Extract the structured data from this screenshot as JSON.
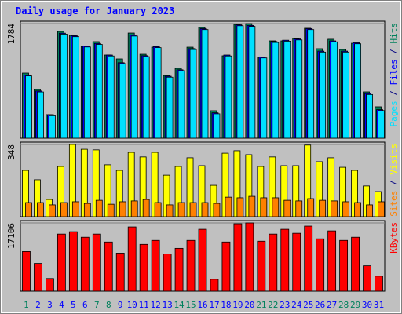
{
  "title": "Daily usage for January 2023",
  "legend_separator": " / ",
  "chart_data": [
    {
      "type": "bar",
      "series": [
        {
          "name": "Hits",
          "color": "#00805c",
          "values": [
            1014,
            758,
            367,
            1662,
            1601,
            1430,
            1503,
            1295,
            1234,
            1637,
            1307,
            1417,
            977,
            1087,
            1417,
            1723,
            428,
            1283,
            1772,
            1784,
            1259,
            1515,
            1515,
            1552,
            1711,
            1393,
            1540,
            1381,
            1478,
            721,
            489
          ]
        },
        {
          "name": "Files",
          "color": "#0000ff",
          "values": [
            985,
            735,
            365,
            1635,
            1595,
            1435,
            1475,
            1295,
            1175,
            1605,
            1285,
            1425,
            965,
            1065,
            1395,
            1705,
            395,
            1295,
            1765,
            1755,
            1265,
            1505,
            1525,
            1545,
            1705,
            1355,
            1515,
            1355,
            1485,
            695,
            445
          ]
        },
        {
          "name": "Pages",
          "color": "#00e0ff",
          "values": [
            970,
            720,
            350,
            1620,
            1580,
            1420,
            1460,
            1280,
            1160,
            1590,
            1270,
            1410,
            950,
            1050,
            1380,
            1690,
            380,
            1280,
            1750,
            1740,
            1250,
            1490,
            1510,
            1530,
            1690,
            1340,
            1500,
            1340,
            1470,
            680,
            430
          ]
        }
      ],
      "ylim": [
        0,
        1784
      ],
      "yticks": [
        1784
      ]
    },
    {
      "type": "bar",
      "series": [
        {
          "name": "Visits",
          "color": "#ffff00",
          "values": [
            223,
            178,
            83,
            242,
            348,
            325,
            322,
            250,
            223,
            310,
            288,
            310,
            200,
            242,
            284,
            246,
            151,
            306,
            318,
            299,
            242,
            288,
            246,
            246,
            345,
            265,
            284,
            238,
            223,
            148,
            121
          ]
        },
        {
          "name": "Sites",
          "color": "#ff8000",
          "values": [
            68,
            68,
            57,
            68,
            72,
            64,
            79,
            60,
            72,
            76,
            83,
            68,
            57,
            68,
            68,
            68,
            64,
            94,
            91,
            98,
            91,
            91,
            79,
            76,
            87,
            79,
            76,
            72,
            68,
            57,
            72
          ]
        }
      ],
      "ylim": [
        0,
        348
      ],
      "yticks": [
        348
      ]
    },
    {
      "type": "bar",
      "series": [
        {
          "name": "KBytes",
          "color": "#ff0000",
          "values": [
            9946,
            6962,
            3183,
            14322,
            14918,
            13525,
            14322,
            12333,
            9548,
            16111,
            11736,
            12730,
            9349,
            10741,
            12730,
            15515,
            2984,
            12333,
            16907,
            17106,
            12531,
            14322,
            15515,
            14521,
            16311,
            13128,
            15117,
            12730,
            13525,
            6365,
            3779
          ]
        }
      ],
      "categories": [
        "1",
        "2",
        "3",
        "4",
        "5",
        "6",
        "7",
        "8",
        "9",
        "10",
        "11",
        "12",
        "13",
        "14",
        "15",
        "16",
        "17",
        "18",
        "19",
        "20",
        "21",
        "22",
        "23",
        "24",
        "25",
        "26",
        "27",
        "28",
        "29",
        "30",
        "31"
      ],
      "category_colors": [
        "#00805c",
        "#0000ff",
        "#0000ff",
        "#0000ff",
        "#0000ff",
        "#0000ff",
        "#00805c",
        "#00805c",
        "#0000ff",
        "#0000ff",
        "#0000ff",
        "#0000ff",
        "#0000ff",
        "#00805c",
        "#00805c",
        "#0000ff",
        "#0000ff",
        "#0000ff",
        "#0000ff",
        "#0000ff",
        "#00805c",
        "#00805c",
        "#0000ff",
        "#0000ff",
        "#0000ff",
        "#0000ff",
        "#0000ff",
        "#00805c",
        "#00805c",
        "#0000ff",
        "#0000ff"
      ],
      "ylim": [
        0,
        17106
      ],
      "yticks": [
        17106
      ]
    }
  ]
}
